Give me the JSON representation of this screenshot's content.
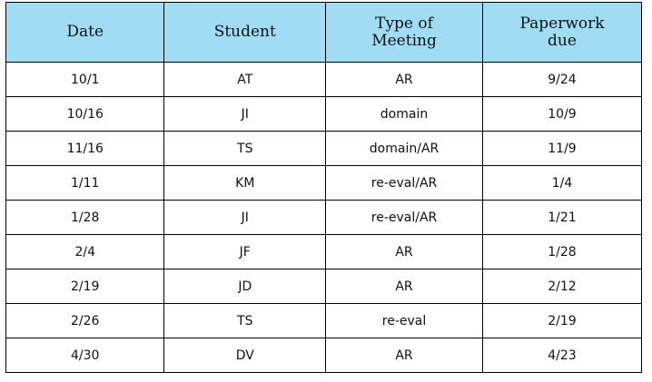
{
  "table": {
    "headers": [
      "Date",
      "Student",
      "Type of Meeting",
      "Paperwork due"
    ],
    "header_color": "#a0ddf5",
    "rows": [
      [
        "10/1",
        "AT",
        "AR",
        "9/24"
      ],
      [
        "10/16",
        "JI",
        "domain",
        "10/9"
      ],
      [
        "11/16",
        "TS",
        "domain/AR",
        "11/9"
      ],
      [
        "1/11",
        "KM",
        "re-eval/AR",
        "1/4"
      ],
      [
        "1/28",
        "JI",
        "re-eval/AR",
        "1/21"
      ],
      [
        "2/4",
        "JF",
        "AR",
        "1/28"
      ],
      [
        "2/19",
        "JD",
        "AR",
        "2/12"
      ],
      [
        "2/26",
        "TS",
        "re-eval",
        "2/19"
      ],
      [
        "4/30",
        "DV",
        "AR",
        "4/23"
      ]
    ]
  }
}
